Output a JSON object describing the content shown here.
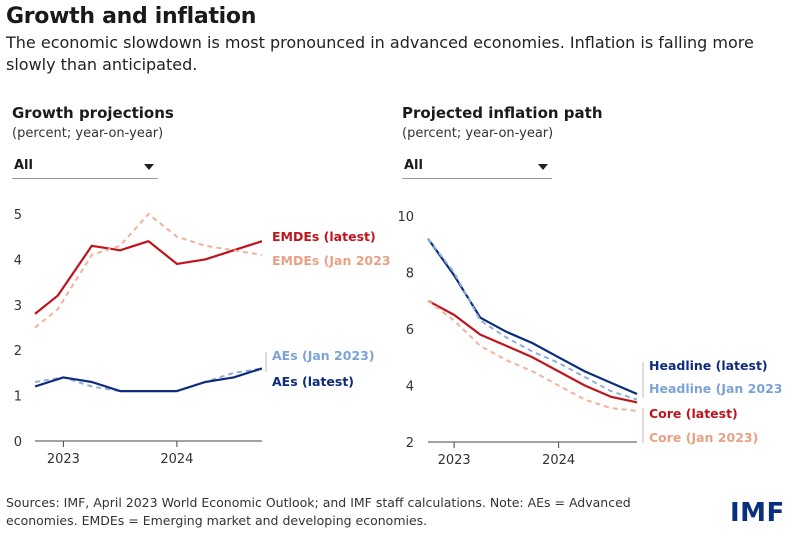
{
  "header": {
    "title": "Growth and inflation",
    "subtitle": "The economic slowdown is most pronounced in advanced economies. Inflation is falling more slowly than anticipated."
  },
  "left_panel": {
    "title": "Growth projections",
    "subtitle": "(percent; year-on-year)",
    "dropdown": "All"
  },
  "right_panel": {
    "title": "Projected inflation path",
    "subtitle": "(percent; year-on-year)",
    "dropdown": "All"
  },
  "footer": {
    "sources": "Sources: IMF, April 2023 World Economic Outlook; and IMF staff calculations. Note: AEs = Advanced economies. EMDEs = Emerging market and developing economies.",
    "logo": "IMF"
  },
  "chart_data": [
    {
      "type": "line",
      "title": "Growth projections",
      "ylim": [
        0,
        5
      ],
      "yticks": [
        0,
        1,
        2,
        3,
        4,
        5
      ],
      "xlim": [
        2022.75,
        2024.75
      ],
      "xticks": [
        2023,
        2024
      ],
      "xtick_labels": [
        "2023",
        "2024"
      ],
      "series": [
        {
          "name": "EMDEs (latest)",
          "color": "#c0141c",
          "dashed": false,
          "label_color": "#c0141c",
          "x": [
            2022.75,
            2022.95,
            2023.25,
            2023.5,
            2023.75,
            2024.0,
            2024.25,
            2024.5,
            2024.75
          ],
          "y": [
            2.8,
            3.2,
            4.3,
            4.2,
            4.4,
            3.9,
            4.0,
            4.2,
            4.4
          ]
        },
        {
          "name": "EMDEs (Jan 2023",
          "color": "#f0b29c",
          "dashed": true,
          "label_color": "#e8a185",
          "x": [
            2022.75,
            2022.95,
            2023.25,
            2023.5,
            2023.75,
            2024.0,
            2024.25,
            2024.5,
            2024.75
          ],
          "y": [
            2.5,
            2.9,
            4.1,
            4.3,
            5.0,
            4.5,
            4.3,
            4.2,
            4.1
          ]
        },
        {
          "name": "AEs (Jan 2023)",
          "color": "#8fb0dc",
          "dashed": true,
          "label_color": "#7da3d6",
          "x": [
            2022.75,
            2023.0,
            2023.25,
            2023.5,
            2023.75,
            2024.0,
            2024.25,
            2024.5,
            2024.75
          ],
          "y": [
            1.3,
            1.4,
            1.2,
            1.1,
            1.1,
            1.1,
            1.3,
            1.5,
            1.6
          ]
        },
        {
          "name": "AEs (latest)",
          "color": "#0e2c7c",
          "dashed": false,
          "label_color": "#0e2c7c",
          "x": [
            2022.75,
            2023.0,
            2023.25,
            2023.5,
            2023.75,
            2024.0,
            2024.25,
            2024.5,
            2024.75
          ],
          "y": [
            1.2,
            1.4,
            1.3,
            1.1,
            1.1,
            1.1,
            1.3,
            1.4,
            1.6
          ]
        }
      ]
    },
    {
      "type": "line",
      "title": "Projected inflation path",
      "ylim": [
        2,
        10
      ],
      "yticks": [
        2,
        4,
        6,
        8,
        10
      ],
      "xlim": [
        2022.75,
        2024.75
      ],
      "xticks": [
        2023,
        2024
      ],
      "xtick_labels": [
        "2023",
        "2024"
      ],
      "series": [
        {
          "name": "Headline (latest)",
          "color": "#0e2c7c",
          "dashed": false,
          "label_color": "#0e2c7c",
          "x": [
            2022.75,
            2023.0,
            2023.25,
            2023.5,
            2023.75,
            2024.0,
            2024.25,
            2024.5,
            2024.75
          ],
          "y": [
            9.2,
            7.9,
            6.4,
            5.9,
            5.5,
            5.0,
            4.5,
            4.1,
            3.7
          ]
        },
        {
          "name": "Headline (Jan 2023",
          "color": "#8fb0dc",
          "dashed": true,
          "label_color": "#7da3d6",
          "x": [
            2022.75,
            2023.0,
            2023.25,
            2023.5,
            2023.75,
            2024.0,
            2024.25,
            2024.5,
            2024.75
          ],
          "y": [
            9.2,
            8.0,
            6.3,
            5.7,
            5.2,
            4.8,
            4.3,
            3.8,
            3.5
          ]
        },
        {
          "name": "Core (latest)",
          "color": "#c0141c",
          "dashed": false,
          "label_color": "#c0141c",
          "x": [
            2022.75,
            2023.0,
            2023.25,
            2023.5,
            2023.75,
            2024.0,
            2024.25,
            2024.5,
            2024.75
          ],
          "y": [
            7.0,
            6.5,
            5.8,
            5.4,
            5.0,
            4.5,
            4.0,
            3.6,
            3.4
          ]
        },
        {
          "name": "Core (Jan 2023)",
          "color": "#f0b29c",
          "dashed": true,
          "label_color": "#e8a185",
          "x": [
            2022.75,
            2023.0,
            2023.25,
            2023.5,
            2023.75,
            2024.0,
            2024.25,
            2024.5,
            2024.75
          ],
          "y": [
            7.0,
            6.3,
            5.4,
            4.9,
            4.5,
            4.0,
            3.5,
            3.2,
            3.1
          ]
        }
      ]
    }
  ]
}
